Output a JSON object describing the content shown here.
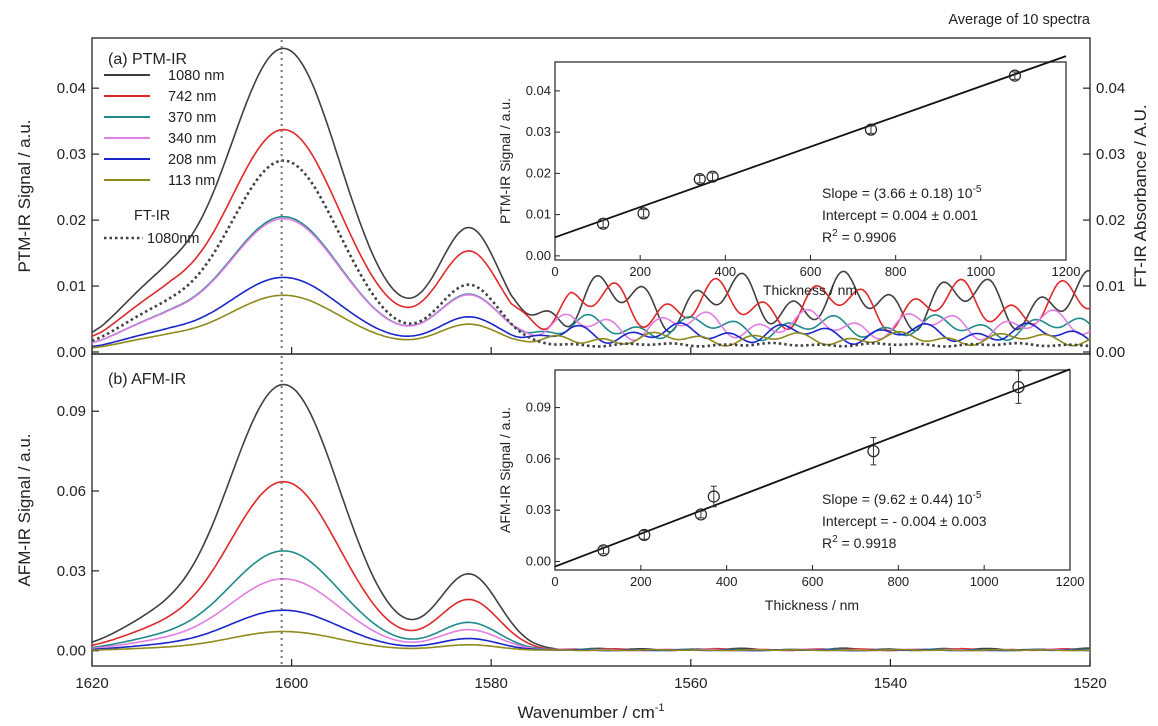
{
  "header_note": "Average of 10 spectra",
  "colors": {
    "c1080": "#404040",
    "c742": "#e0282a",
    "c370": "#1f8a8a",
    "c340": "#e27de3",
    "c208": "#1a26c9",
    "c113": "#8f8a1c",
    "ftir": "#404040"
  },
  "chart_data": [
    {
      "type": "line",
      "panel_label": "(a)  PTM-IR",
      "ylabel": "PTM-IR Signal / a.u.",
      "ylabel_right": "FT-IR Absorbance / A.U.",
      "xlabel": "Wavenumber / cm",
      "xlabel_sup": "-1",
      "xlim": [
        1620,
        1520
      ],
      "ylim": [
        0,
        0.047
      ],
      "y_ticks": [
        "0.00",
        "0.01",
        "0.02",
        "0.03",
        "0.04"
      ],
      "x_ticks": [
        "1620",
        "1600",
        "1580",
        "1560",
        "1540",
        "1520"
      ],
      "reference_line_x": 1601,
      "legend_title_2": "FT-IR",
      "series": [
        {
          "name": "1080 nm",
          "color": "#404040",
          "peak1": 0.0435,
          "peak2": 0.0162,
          "base": 0.0025,
          "tail": 0.0052
        },
        {
          "name": "742 nm",
          "color": "#e0282a",
          "peak1": 0.0311,
          "peak2": 0.0126,
          "base": 0.0026,
          "tail": 0.0045
        },
        {
          "name": "370 nm",
          "color": "#1f8a8a",
          "peak1": 0.019,
          "peak2": 0.0072,
          "base": 0.0015,
          "tail": 0.0022
        },
        {
          "name": "340 nm",
          "color": "#e27de3",
          "peak1": 0.0187,
          "peak2": 0.0071,
          "base": 0.0015,
          "tail": 0.0026
        },
        {
          "name": "208 nm",
          "color": "#1a26c9",
          "peak1": 0.0103,
          "peak2": 0.0043,
          "base": 0.001,
          "tail": 0.0018
        },
        {
          "name": "113 nm",
          "color": "#8f8a1c",
          "peak1": 0.0078,
          "peak2": 0.0034,
          "base": 0.0008,
          "tail": 0.0012
        },
        {
          "name": "1080nm",
          "color": "#404040",
          "dotted": true,
          "peak1": 0.0282,
          "peak2": 0.0093,
          "base": 0.0008,
          "tail": 0.0003
        }
      ],
      "inset": {
        "xlabel": "Thickness / nm",
        "ylabel": "PTM-IR Signal / a.u.",
        "xlim": [
          0,
          1200
        ],
        "ylim": [
          -0.001,
          0.047
        ],
        "x_ticks": [
          "0",
          "200",
          "400",
          "600",
          "800",
          "1000",
          "1200"
        ],
        "y_ticks": [
          "0.00",
          "0.01",
          "0.02",
          "0.03",
          "0.04"
        ],
        "points": [
          {
            "x": 113,
            "y": 0.0078
          },
          {
            "x": 208,
            "y": 0.0103
          },
          {
            "x": 340,
            "y": 0.0186
          },
          {
            "x": 370,
            "y": 0.0192
          },
          {
            "x": 742,
            "y": 0.0306
          },
          {
            "x": 1080,
            "y": 0.0437
          }
        ],
        "fit": {
          "slope": 3.66e-05,
          "intercept": 0.0045
        },
        "slope_text": "Slope = (3.66 ± 0.18) 10",
        "slope_exp": "-5",
        "intercept_text": "Intercept = 0.004 ± 0.001",
        "r2_text": "R",
        "r2_value": " = 0.9906"
      }
    },
    {
      "type": "line",
      "panel_label": "(b)  AFM-IR",
      "ylabel": "AFM-IR Signal / a.u.",
      "ylim": [
        -0.005,
        0.11
      ],
      "y_ticks": [
        "0.00",
        "0.03",
        "0.06",
        "0.09"
      ],
      "series": [
        {
          "name": "1080 nm",
          "color": "#404040",
          "peak1": 0.1,
          "peak2": 0.0285,
          "base": 0.0,
          "tail": 0.0005
        },
        {
          "name": "742 nm",
          "color": "#e0282a",
          "peak1": 0.0635,
          "peak2": 0.019,
          "base": 0.0,
          "tail": 0.0004
        },
        {
          "name": "370 nm",
          "color": "#1f8a8a",
          "peak1": 0.0375,
          "peak2": 0.0105,
          "base": 0.0,
          "tail": 0.0003
        },
        {
          "name": "340 nm",
          "color": "#e27de3",
          "peak1": 0.027,
          "peak2": 0.0078,
          "base": 0.0,
          "tail": 0.0003
        },
        {
          "name": "208 nm",
          "color": "#1a26c9",
          "peak1": 0.0152,
          "peak2": 0.0045,
          "base": 0.0,
          "tail": 0.0002
        },
        {
          "name": "113 nm",
          "color": "#8f8a1c",
          "peak1": 0.0072,
          "peak2": 0.0022,
          "base": 0.0,
          "tail": 0.0002
        }
      ],
      "inset": {
        "xlabel": "Thickness / nm",
        "ylabel": "AFM-IR Signal / a.u.",
        "xlim": [
          0,
          1200
        ],
        "ylim": [
          -0.005,
          0.112
        ],
        "x_ticks": [
          "0",
          "200",
          "400",
          "600",
          "800",
          "1000",
          "1200"
        ],
        "y_ticks": [
          "0.00",
          "0.03",
          "0.06",
          "0.09"
        ],
        "points": [
          {
            "x": 113,
            "y": 0.0065,
            "err": 0.002
          },
          {
            "x": 208,
            "y": 0.0155,
            "err": 0.0025
          },
          {
            "x": 340,
            "y": 0.0275,
            "err": 0.002
          },
          {
            "x": 370,
            "y": 0.038,
            "err": 0.006
          },
          {
            "x": 742,
            "y": 0.0645,
            "err": 0.008
          },
          {
            "x": 1080,
            "y": 0.102,
            "err": 0.0095
          }
        ],
        "fit": {
          "slope": 9.62e-05,
          "intercept": -0.003
        },
        "slope_text": "Slope = (9.62 ± 0.44) 10",
        "slope_exp": "-5",
        "intercept_text": "Intercept = - 0.004 ± 0.003",
        "r2_text": "R",
        "r2_value": " = 0.9918"
      }
    }
  ]
}
